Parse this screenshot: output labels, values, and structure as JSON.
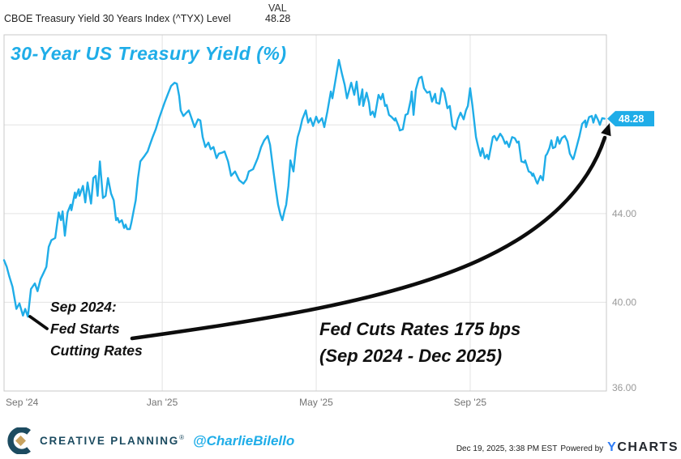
{
  "header": {
    "series_name": "CBOE Treasury Yield 30 Years Index (^TYX) Level",
    "val_label": "VAL",
    "val_value": "48.28"
  },
  "chart_title": "30-Year US Treasury Yield (%)",
  "quote": {
    "value": "48.28"
  },
  "annotations": {
    "left": {
      "line1": "Sep 2024:",
      "line2": "Fed Starts",
      "line3": "Cutting Rates"
    },
    "right": {
      "line1": "Fed Cuts Rates 175 bps",
      "line2": "(Sep 2024 - Dec 2025)"
    }
  },
  "footer": {
    "brand": "CREATIVE PLANNING",
    "reg": "®",
    "handle": "@CharlieBilello",
    "timestamp": "Dec 19, 2025, 3:38 PM EST",
    "powered_by": "Powered by",
    "ycharts_y": "Y",
    "ycharts_rest": "CHARTS"
  },
  "colors": {
    "line": "#1FADE8",
    "title": "#1FADE8",
    "annotation": "#111111",
    "grid": "#e3e3e3",
    "border": "#c9c9c9",
    "brand_navy": "#1C4B60",
    "brand_gold": "#C8A25F",
    "ycharts_blue": "#2E7CF6"
  },
  "chart_data": {
    "type": "line",
    "title": "30-Year US Treasury Yield (%)",
    "series_name": "CBOE Treasury Yield 30 Years Index (^TYX) Level",
    "last_value": 48.28,
    "x_unit": "months since Sep 2024",
    "x_range": [
      -0.11,
      15.54
    ],
    "y_range": [
      36,
      52.06
    ],
    "x_ticks": [
      {
        "m": 0,
        "label": "Sep '24",
        "grid": false,
        "dx": 17
      },
      {
        "m": 4,
        "label": "Jan '25",
        "grid": true,
        "dx": 0
      },
      {
        "m": 8,
        "label": "May '25",
        "grid": true,
        "dx": 0
      },
      {
        "m": 12,
        "label": "Sep '25",
        "grid": true,
        "dx": 0
      }
    ],
    "y_ticks": [
      {
        "v": 44,
        "label": "44.00",
        "dy": 4
      },
      {
        "v": 40,
        "label": "40.00",
        "dy": 4
      },
      {
        "v": 36,
        "label": "36.00",
        "dy": 0
      }
    ],
    "y_gridlines": [
      48,
      44,
      40
    ],
    "legend_position": "none",
    "grid": true,
    "points": [
      [
        -0.11,
        41.9
      ],
      [
        -0.04,
        41.6
      ],
      [
        0.02,
        41.2
      ],
      [
        0.11,
        40.7
      ],
      [
        0.21,
        39.7
      ],
      [
        0.29,
        39.95
      ],
      [
        0.38,
        39.4
      ],
      [
        0.44,
        39.7
      ],
      [
        0.51,
        39.35
      ],
      [
        0.59,
        40.6
      ],
      [
        0.69,
        40.85
      ],
      [
        0.76,
        40.5
      ],
      [
        0.84,
        41.05
      ],
      [
        0.91,
        41.3
      ],
      [
        0.99,
        41.6
      ],
      [
        1.05,
        42.5
      ],
      [
        1.12,
        42.8
      ],
      [
        1.22,
        42.9
      ],
      [
        1.31,
        44.05
      ],
      [
        1.37,
        43.7
      ],
      [
        1.41,
        44.1
      ],
      [
        1.47,
        43.0
      ],
      [
        1.54,
        44.05
      ],
      [
        1.62,
        44.4
      ],
      [
        1.64,
        44.15
      ],
      [
        1.73,
        44.95
      ],
      [
        1.75,
        44.7
      ],
      [
        1.83,
        45.1
      ],
      [
        1.85,
        44.8
      ],
      [
        1.94,
        45.25
      ],
      [
        2.0,
        44.5
      ],
      [
        2.06,
        45.4
      ],
      [
        2.15,
        44.45
      ],
      [
        2.21,
        45.6
      ],
      [
        2.27,
        45.7
      ],
      [
        2.32,
        44.8
      ],
      [
        2.38,
        46.35
      ],
      [
        2.46,
        44.7
      ],
      [
        2.53,
        44.8
      ],
      [
        2.59,
        45.6
      ],
      [
        2.67,
        44.9
      ],
      [
        2.74,
        44.6
      ],
      [
        2.8,
        43.7
      ],
      [
        2.84,
        43.8
      ],
      [
        2.88,
        43.6
      ],
      [
        2.95,
        43.7
      ],
      [
        3.01,
        43.35
      ],
      [
        3.05,
        43.5
      ],
      [
        3.09,
        43.3
      ],
      [
        3.16,
        43.3
      ],
      [
        3.2,
        43.6
      ],
      [
        3.26,
        44.15
      ],
      [
        3.31,
        44.6
      ],
      [
        3.37,
        45.6
      ],
      [
        3.43,
        46.35
      ],
      [
        3.54,
        46.6
      ],
      [
        3.62,
        46.8
      ],
      [
        3.68,
        47.1
      ],
      [
        3.75,
        47.45
      ],
      [
        3.83,
        47.8
      ],
      [
        3.92,
        48.3
      ],
      [
        4.0,
        48.7
      ],
      [
        4.06,
        49.0
      ],
      [
        4.15,
        49.4
      ],
      [
        4.23,
        49.75
      ],
      [
        4.32,
        49.9
      ],
      [
        4.38,
        49.85
      ],
      [
        4.44,
        49.3
      ],
      [
        4.48,
        48.65
      ],
      [
        4.55,
        48.4
      ],
      [
        4.63,
        48.55
      ],
      [
        4.69,
        48.65
      ],
      [
        4.78,
        48.2
      ],
      [
        4.84,
        47.9
      ],
      [
        4.93,
        48.25
      ],
      [
        4.99,
        48.2
      ],
      [
        5.05,
        47.45
      ],
      [
        5.12,
        47.0
      ],
      [
        5.2,
        47.2
      ],
      [
        5.26,
        46.9
      ],
      [
        5.33,
        47.0
      ],
      [
        5.41,
        46.5
      ],
      [
        5.47,
        46.7
      ],
      [
        5.56,
        46.75
      ],
      [
        5.62,
        46.8
      ],
      [
        5.71,
        46.35
      ],
      [
        5.79,
        45.7
      ],
      [
        5.89,
        45.9
      ],
      [
        6.0,
        45.5
      ],
      [
        6.11,
        45.35
      ],
      [
        6.19,
        45.55
      ],
      [
        6.25,
        45.9
      ],
      [
        6.36,
        46.0
      ],
      [
        6.48,
        46.5
      ],
      [
        6.57,
        47.0
      ],
      [
        6.65,
        47.3
      ],
      [
        6.74,
        47.5
      ],
      [
        6.8,
        47.1
      ],
      [
        6.88,
        46.0
      ],
      [
        6.95,
        45.1
      ],
      [
        7.01,
        44.4
      ],
      [
        7.07,
        43.95
      ],
      [
        7.12,
        43.7
      ],
      [
        7.18,
        44.15
      ],
      [
        7.22,
        44.4
      ],
      [
        7.28,
        45.25
      ],
      [
        7.33,
        46.4
      ],
      [
        7.37,
        46.15
      ],
      [
        7.41,
        45.9
      ],
      [
        7.47,
        46.9
      ],
      [
        7.52,
        47.45
      ],
      [
        7.58,
        47.8
      ],
      [
        7.64,
        48.25
      ],
      [
        7.73,
        48.65
      ],
      [
        7.79,
        48.1
      ],
      [
        7.85,
        48.3
      ],
      [
        7.92,
        47.95
      ],
      [
        8.0,
        48.37
      ],
      [
        8.06,
        48.1
      ],
      [
        8.15,
        48.3
      ],
      [
        8.21,
        47.9
      ],
      [
        8.29,
        48.6
      ],
      [
        8.38,
        49.5
      ],
      [
        8.42,
        49.2
      ],
      [
        8.51,
        50.1
      ],
      [
        8.59,
        50.93
      ],
      [
        8.67,
        50.3
      ],
      [
        8.74,
        49.8
      ],
      [
        8.8,
        49.2
      ],
      [
        8.91,
        49.9
      ],
      [
        8.99,
        49.35
      ],
      [
        9.05,
        49.95
      ],
      [
        9.12,
        48.9
      ],
      [
        9.2,
        49.6
      ],
      [
        9.22,
        48.85
      ],
      [
        9.31,
        49.45
      ],
      [
        9.37,
        49.0
      ],
      [
        9.41,
        48.45
      ],
      [
        9.47,
        48.6
      ],
      [
        9.52,
        48.35
      ],
      [
        9.62,
        49.35
      ],
      [
        9.68,
        49.15
      ],
      [
        9.73,
        49.4
      ],
      [
        9.79,
        48.85
      ],
      [
        9.83,
        48.9
      ],
      [
        9.89,
        48.45
      ],
      [
        9.96,
        48.35
      ],
      [
        10.04,
        48.2
      ],
      [
        10.06,
        48.3
      ],
      [
        10.15,
        47.9
      ],
      [
        10.17,
        47.75
      ],
      [
        10.25,
        47.8
      ],
      [
        10.32,
        48.45
      ],
      [
        10.38,
        48.5
      ],
      [
        10.46,
        49.15
      ],
      [
        10.48,
        49.5
      ],
      [
        10.53,
        48.45
      ],
      [
        10.59,
        49.6
      ],
      [
        10.67,
        50.1
      ],
      [
        10.74,
        50.17
      ],
      [
        10.8,
        49.65
      ],
      [
        10.88,
        49.45
      ],
      [
        10.95,
        49.5
      ],
      [
        11.01,
        49.05
      ],
      [
        11.09,
        49.4
      ],
      [
        11.12,
        49.0
      ],
      [
        11.2,
        48.95
      ],
      [
        11.26,
        49.65
      ],
      [
        11.33,
        49.45
      ],
      [
        11.41,
        48.75
      ],
      [
        11.47,
        48.85
      ],
      [
        11.54,
        47.95
      ],
      [
        11.62,
        47.8
      ],
      [
        11.68,
        48.25
      ],
      [
        11.75,
        48.55
      ],
      [
        11.83,
        48.25
      ],
      [
        11.89,
        48.65
      ],
      [
        11.94,
        48.85
      ],
      [
        12.0,
        49.65
      ],
      [
        12.06,
        48.85
      ],
      [
        12.15,
        47.45
      ],
      [
        12.21,
        47.0
      ],
      [
        12.27,
        46.6
      ],
      [
        12.32,
        46.95
      ],
      [
        12.38,
        46.5
      ],
      [
        12.44,
        46.65
      ],
      [
        12.48,
        46.45
      ],
      [
        12.59,
        47.45
      ],
      [
        12.63,
        47.5
      ],
      [
        12.69,
        47.3
      ],
      [
        12.78,
        47.6
      ],
      [
        12.84,
        47.45
      ],
      [
        12.91,
        47.15
      ],
      [
        12.95,
        47.25
      ],
      [
        13.01,
        47.0
      ],
      [
        13.09,
        47.45
      ],
      [
        13.16,
        47.4
      ],
      [
        13.22,
        47.2
      ],
      [
        13.26,
        47.25
      ],
      [
        13.33,
        46.35
      ],
      [
        13.41,
        46.3
      ],
      [
        13.43,
        46.4
      ],
      [
        13.52,
        45.9
      ],
      [
        13.58,
        45.85
      ],
      [
        13.62,
        45.7
      ],
      [
        13.64,
        45.8
      ],
      [
        13.73,
        45.4
      ],
      [
        13.75,
        45.35
      ],
      [
        13.79,
        45.55
      ],
      [
        13.83,
        45.7
      ],
      [
        13.89,
        45.5
      ],
      [
        13.96,
        46.6
      ],
      [
        14.0,
        46.7
      ],
      [
        14.06,
        46.95
      ],
      [
        14.11,
        47.3
      ],
      [
        14.15,
        46.95
      ],
      [
        14.21,
        47.0
      ],
      [
        14.27,
        47.45
      ],
      [
        14.32,
        47.15
      ],
      [
        14.38,
        47.4
      ],
      [
        14.46,
        47.5
      ],
      [
        14.53,
        47.25
      ],
      [
        14.59,
        46.7
      ],
      [
        14.67,
        46.45
      ],
      [
        14.69,
        46.5
      ],
      [
        14.78,
        47.1
      ],
      [
        14.84,
        47.5
      ],
      [
        14.91,
        48.05
      ],
      [
        14.99,
        48.2
      ],
      [
        15.01,
        47.9
      ],
      [
        15.09,
        48.35
      ],
      [
        15.16,
        48.4
      ],
      [
        15.2,
        48.1
      ],
      [
        15.26,
        48.45
      ],
      [
        15.33,
        48.2
      ],
      [
        15.37,
        48.0
      ],
      [
        15.43,
        48.3
      ],
      [
        15.49,
        48.28
      ]
    ]
  }
}
